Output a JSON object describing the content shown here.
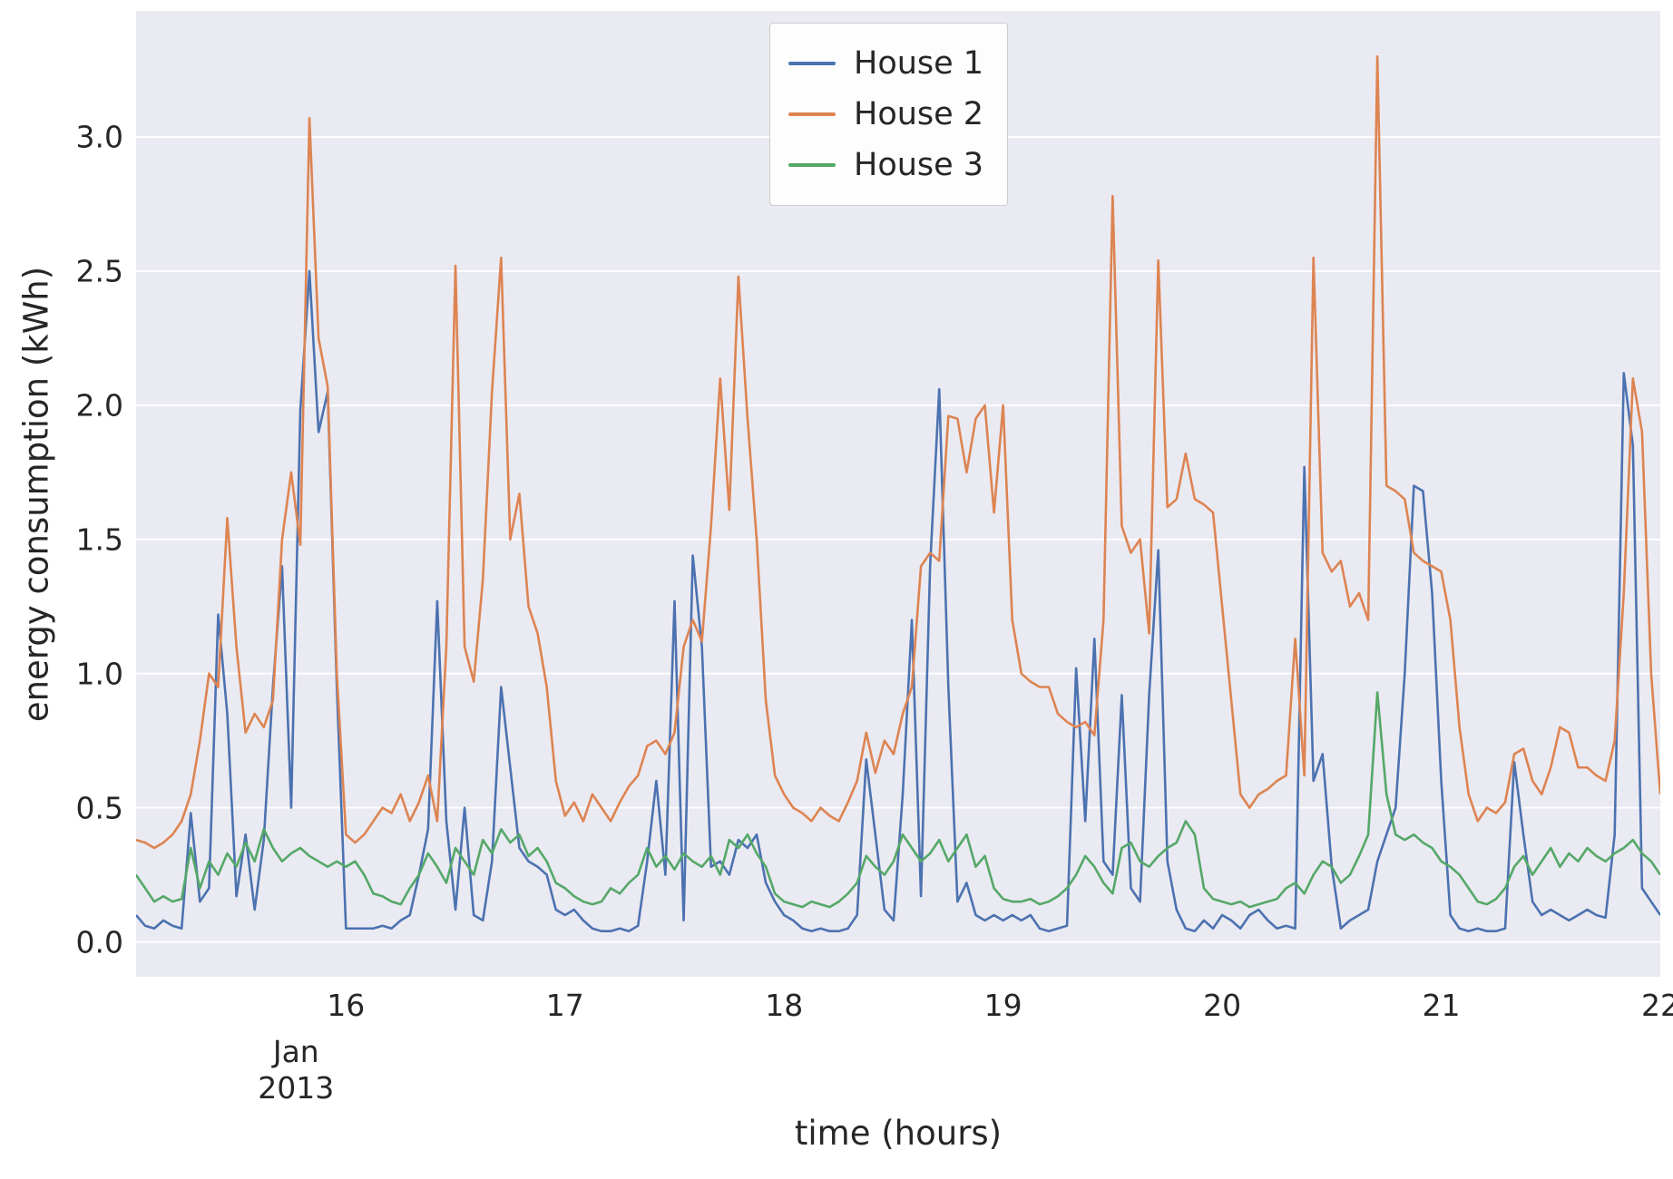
{
  "figure": {
    "background": "#ffffff",
    "plot_background": "#eaeaf2",
    "grid_color": "#ffffff",
    "text_color": "#262626"
  },
  "chart_data": {
    "type": "line",
    "title": "",
    "xlabel": "time (hours)",
    "ylabel": "energy consumption (kWh)",
    "x_offset_label": [
      "Jan",
      "2013"
    ],
    "x_tick_labels": [
      "16",
      "17",
      "18",
      "19",
      "20",
      "21",
      "22"
    ],
    "x_tick_values": [
      16,
      17,
      18,
      19,
      20,
      21,
      22
    ],
    "y_tick_labels": [
      "0.0",
      "0.5",
      "1.0",
      "1.5",
      "2.0",
      "2.5",
      "3.0"
    ],
    "y_tick_values": [
      0.0,
      0.5,
      1.0,
      1.5,
      2.0,
      2.5,
      3.0
    ],
    "xlim": [
      15.042,
      22.0
    ],
    "ylim": [
      -0.13,
      3.47
    ],
    "grid": "horizontal",
    "legend_position": "upper center",
    "x_start": 15.0416667,
    "x_step": 0.0416667,
    "x_unit": "days since Jan 1 2013, hourly samples",
    "series": [
      {
        "name": "House 1",
        "color": "#4c72b0",
        "values": [
          0.1,
          0.06,
          0.05,
          0.08,
          0.06,
          0.05,
          0.48,
          0.15,
          0.2,
          1.22,
          0.85,
          0.17,
          0.4,
          0.12,
          0.38,
          0.95,
          1.4,
          0.5,
          1.98,
          2.5,
          1.9,
          2.05,
          0.95,
          0.05,
          0.05,
          0.05,
          0.05,
          0.06,
          0.05,
          0.08,
          0.1,
          0.25,
          0.42,
          1.27,
          0.45,
          0.12,
          0.5,
          0.1,
          0.08,
          0.3,
          0.95,
          0.65,
          0.35,
          0.3,
          0.28,
          0.25,
          0.12,
          0.1,
          0.12,
          0.08,
          0.05,
          0.04,
          0.04,
          0.05,
          0.04,
          0.06,
          0.3,
          0.6,
          0.25,
          1.27,
          0.08,
          1.44,
          1.1,
          0.28,
          0.3,
          0.25,
          0.38,
          0.35,
          0.4,
          0.22,
          0.15,
          0.1,
          0.08,
          0.05,
          0.04,
          0.05,
          0.04,
          0.04,
          0.05,
          0.1,
          0.68,
          0.4,
          0.12,
          0.08,
          0.55,
          1.2,
          0.17,
          1.4,
          2.06,
          0.95,
          0.15,
          0.22,
          0.1,
          0.08,
          0.1,
          0.08,
          0.1,
          0.08,
          0.1,
          0.05,
          0.04,
          0.05,
          0.06,
          1.02,
          0.45,
          1.13,
          0.3,
          0.25,
          0.92,
          0.2,
          0.15,
          0.92,
          1.46,
          0.3,
          0.12,
          0.05,
          0.04,
          0.08,
          0.05,
          0.1,
          0.08,
          0.05,
          0.1,
          0.12,
          0.08,
          0.05,
          0.06,
          0.05,
          1.77,
          0.6,
          0.7,
          0.28,
          0.05,
          0.08,
          0.1,
          0.12,
          0.3,
          0.4,
          0.5,
          1.0,
          1.7,
          1.68,
          1.3,
          0.6,
          0.1,
          0.05,
          0.04,
          0.05,
          0.04,
          0.04,
          0.05,
          0.67,
          0.4,
          0.15,
          0.1,
          0.12,
          0.1,
          0.08,
          0.1,
          0.12,
          0.1,
          0.09,
          0.4,
          2.12,
          1.85,
          0.2,
          0.15,
          0.1
        ]
      },
      {
        "name": "House 2",
        "color": "#dd8452",
        "values": [
          0.38,
          0.37,
          0.35,
          0.37,
          0.4,
          0.45,
          0.55,
          0.75,
          1.0,
          0.95,
          1.58,
          1.1,
          0.78,
          0.85,
          0.8,
          0.9,
          1.5,
          1.75,
          1.48,
          3.07,
          2.25,
          2.07,
          1.0,
          0.4,
          0.37,
          0.4,
          0.45,
          0.5,
          0.48,
          0.55,
          0.45,
          0.52,
          0.62,
          0.45,
          1.1,
          2.52,
          1.1,
          0.97,
          1.35,
          2.05,
          2.55,
          1.5,
          1.67,
          1.25,
          1.15,
          0.95,
          0.6,
          0.47,
          0.52,
          0.45,
          0.55,
          0.5,
          0.45,
          0.52,
          0.58,
          0.62,
          0.73,
          0.75,
          0.7,
          0.78,
          1.1,
          1.2,
          1.12,
          1.55,
          2.1,
          1.61,
          2.48,
          1.95,
          1.5,
          0.9,
          0.62,
          0.55,
          0.5,
          0.48,
          0.45,
          0.5,
          0.47,
          0.45,
          0.52,
          0.6,
          0.78,
          0.63,
          0.75,
          0.7,
          0.85,
          0.95,
          1.4,
          1.45,
          1.42,
          1.96,
          1.95,
          1.75,
          1.95,
          2.0,
          1.6,
          2.0,
          1.2,
          1.0,
          0.97,
          0.95,
          0.95,
          0.85,
          0.82,
          0.8,
          0.82,
          0.77,
          1.2,
          2.78,
          1.55,
          1.45,
          1.5,
          1.15,
          2.54,
          1.62,
          1.65,
          1.82,
          1.65,
          1.63,
          1.6,
          1.25,
          0.9,
          0.55,
          0.5,
          0.55,
          0.57,
          0.6,
          0.62,
          1.13,
          0.62,
          2.55,
          1.45,
          1.38,
          1.42,
          1.25,
          1.3,
          1.2,
          3.3,
          1.7,
          1.68,
          1.65,
          1.45,
          1.42,
          1.4,
          1.38,
          1.2,
          0.8,
          0.55,
          0.45,
          0.5,
          0.48,
          0.52,
          0.7,
          0.72,
          0.6,
          0.55,
          0.65,
          0.8,
          0.78,
          0.65,
          0.65,
          0.62,
          0.6,
          0.75,
          1.3,
          2.1,
          1.9,
          1.0,
          0.55
        ]
      },
      {
        "name": "House 3",
        "color": "#55a868",
        "values": [
          0.25,
          0.2,
          0.15,
          0.17,
          0.15,
          0.16,
          0.35,
          0.2,
          0.3,
          0.25,
          0.33,
          0.28,
          0.37,
          0.3,
          0.42,
          0.35,
          0.3,
          0.33,
          0.35,
          0.32,
          0.3,
          0.28,
          0.3,
          0.28,
          0.3,
          0.25,
          0.18,
          0.17,
          0.15,
          0.14,
          0.2,
          0.25,
          0.33,
          0.28,
          0.22,
          0.35,
          0.3,
          0.25,
          0.38,
          0.33,
          0.42,
          0.37,
          0.4,
          0.32,
          0.35,
          0.3,
          0.22,
          0.2,
          0.17,
          0.15,
          0.14,
          0.15,
          0.2,
          0.18,
          0.22,
          0.25,
          0.35,
          0.28,
          0.32,
          0.27,
          0.33,
          0.3,
          0.28,
          0.32,
          0.25,
          0.38,
          0.35,
          0.4,
          0.33,
          0.28,
          0.18,
          0.15,
          0.14,
          0.13,
          0.15,
          0.14,
          0.13,
          0.15,
          0.18,
          0.22,
          0.32,
          0.28,
          0.25,
          0.3,
          0.4,
          0.35,
          0.3,
          0.33,
          0.38,
          0.3,
          0.35,
          0.4,
          0.28,
          0.32,
          0.2,
          0.16,
          0.15,
          0.15,
          0.16,
          0.14,
          0.15,
          0.17,
          0.2,
          0.25,
          0.32,
          0.28,
          0.22,
          0.18,
          0.35,
          0.37,
          0.3,
          0.28,
          0.32,
          0.35,
          0.37,
          0.45,
          0.4,
          0.2,
          0.16,
          0.15,
          0.14,
          0.15,
          0.13,
          0.14,
          0.15,
          0.16,
          0.2,
          0.22,
          0.18,
          0.25,
          0.3,
          0.28,
          0.22,
          0.25,
          0.32,
          0.4,
          0.93,
          0.55,
          0.4,
          0.38,
          0.4,
          0.37,
          0.35,
          0.3,
          0.28,
          0.25,
          0.2,
          0.15,
          0.14,
          0.16,
          0.2,
          0.28,
          0.32,
          0.25,
          0.3,
          0.35,
          0.28,
          0.33,
          0.3,
          0.35,
          0.32,
          0.3,
          0.33,
          0.35,
          0.38,
          0.33,
          0.3,
          0.25
        ]
      }
    ]
  }
}
